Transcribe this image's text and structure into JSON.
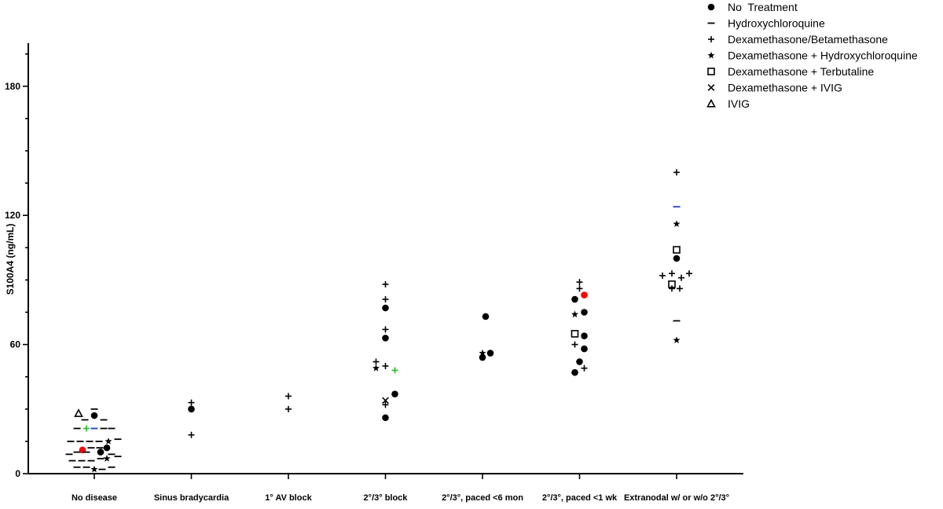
{
  "chart_data": {
    "type": "scatter",
    "title": "",
    "xlabel": "",
    "ylabel": "S100A4 (ng/mL)",
    "ylim": [
      0,
      200
    ],
    "yticks": [
      0,
      60,
      120,
      180
    ],
    "grid": false,
    "legend_position": "top-right",
    "categories": [
      "No disease",
      "Sinus bradycardia",
      "1° AV block",
      "2°/3° block",
      "2°/3°, paced <6 mon",
      "2°/3°, paced <1 wk",
      "Extranodal w/ or w/o 2°/3°"
    ],
    "groups": [
      {
        "key": "none",
        "name": "No  Treatment",
        "marker": "circle"
      },
      {
        "key": "hcq",
        "name": "Hydroxychloroquine",
        "marker": "dash"
      },
      {
        "key": "dex",
        "name": "Dexamethasone/Betamethasone",
        "marker": "plus"
      },
      {
        "key": "dexh",
        "name": "Dexamethasone + Hydroxychloroquine",
        "marker": "star"
      },
      {
        "key": "dext",
        "name": "Dexamethasone + Terbutaline",
        "marker": "square"
      },
      {
        "key": "dexi",
        "name": "Dexamethasone + IVIG",
        "marker": "x"
      },
      {
        "key": "ivig",
        "name": "IVIG",
        "marker": "triangle"
      }
    ],
    "colors": {
      "default": "#000000",
      "red": "#ff0000",
      "green": "#22bb22",
      "blue": "#1a3fd0"
    },
    "points": [
      {
        "cat": 0,
        "offset": -0.2,
        "y": 28,
        "g": "ivig"
      },
      {
        "cat": 0,
        "offset": 0.0,
        "y": 27,
        "g": "none"
      },
      {
        "cat": 0,
        "offset": 0.0,
        "y": 30,
        "g": "hcq"
      },
      {
        "cat": 0,
        "offset": -0.12,
        "y": 25,
        "g": "hcq"
      },
      {
        "cat": 0,
        "offset": 0.12,
        "y": 25,
        "g": "hcq"
      },
      {
        "cat": 0,
        "offset": -0.22,
        "y": 21,
        "g": "hcq"
      },
      {
        "cat": 0,
        "offset": -0.1,
        "y": 21,
        "g": "dex",
        "color": "green"
      },
      {
        "cat": 0,
        "offset": 0.0,
        "y": 21,
        "g": "hcq",
        "color": "blue"
      },
      {
        "cat": 0,
        "offset": 0.12,
        "y": 21,
        "g": "hcq"
      },
      {
        "cat": 0,
        "offset": 0.22,
        "y": 21,
        "g": "hcq"
      },
      {
        "cat": 0,
        "offset": -0.3,
        "y": 15,
        "g": "hcq"
      },
      {
        "cat": 0,
        "offset": -0.18,
        "y": 15,
        "g": "hcq"
      },
      {
        "cat": 0,
        "offset": -0.06,
        "y": 15,
        "g": "hcq"
      },
      {
        "cat": 0,
        "offset": 0.06,
        "y": 15,
        "g": "hcq"
      },
      {
        "cat": 0,
        "offset": 0.18,
        "y": 15,
        "g": "dexh"
      },
      {
        "cat": 0,
        "offset": 0.3,
        "y": 16,
        "g": "hcq"
      },
      {
        "cat": 0,
        "offset": -0.15,
        "y": 11,
        "g": "none",
        "color": "red"
      },
      {
        "cat": 0,
        "offset": -0.04,
        "y": 12,
        "g": "hcq"
      },
      {
        "cat": 0,
        "offset": 0.07,
        "y": 12,
        "g": "hcq"
      },
      {
        "cat": 0,
        "offset": 0.16,
        "y": 12,
        "g": "none"
      },
      {
        "cat": 0,
        "offset": -0.32,
        "y": 9,
        "g": "hcq"
      },
      {
        "cat": 0,
        "offset": -0.22,
        "y": 10,
        "g": "hcq"
      },
      {
        "cat": 0,
        "offset": -0.1,
        "y": 10,
        "g": "hcq"
      },
      {
        "cat": 0,
        "offset": 0.08,
        "y": 10,
        "g": "none"
      },
      {
        "cat": 0,
        "offset": 0.22,
        "y": 9,
        "g": "hcq"
      },
      {
        "cat": 0,
        "offset": 0.3,
        "y": 8,
        "g": "hcq"
      },
      {
        "cat": 0,
        "offset": -0.28,
        "y": 6,
        "g": "hcq"
      },
      {
        "cat": 0,
        "offset": -0.16,
        "y": 6,
        "g": "hcq"
      },
      {
        "cat": 0,
        "offset": -0.04,
        "y": 6,
        "g": "hcq"
      },
      {
        "cat": 0,
        "offset": 0.08,
        "y": 7,
        "g": "hcq"
      },
      {
        "cat": 0,
        "offset": 0.16,
        "y": 7,
        "g": "dexh"
      },
      {
        "cat": 0,
        "offset": -0.22,
        "y": 3,
        "g": "hcq"
      },
      {
        "cat": 0,
        "offset": -0.1,
        "y": 3,
        "g": "hcq"
      },
      {
        "cat": 0,
        "offset": 0.0,
        "y": 2,
        "g": "dexh"
      },
      {
        "cat": 0,
        "offset": 0.1,
        "y": 2,
        "g": "hcq"
      },
      {
        "cat": 0,
        "offset": 0.22,
        "y": 3,
        "g": "hcq"
      },
      {
        "cat": 1,
        "offset": 0.0,
        "y": 33,
        "g": "dex"
      },
      {
        "cat": 1,
        "offset": 0.0,
        "y": 30,
        "g": "none"
      },
      {
        "cat": 1,
        "offset": 0.0,
        "y": 18,
        "g": "dex"
      },
      {
        "cat": 2,
        "offset": 0.0,
        "y": 36,
        "g": "dex"
      },
      {
        "cat": 2,
        "offset": 0.0,
        "y": 30,
        "g": "dex"
      },
      {
        "cat": 3,
        "offset": 0.0,
        "y": 88,
        "g": "dex"
      },
      {
        "cat": 3,
        "offset": 0.0,
        "y": 81,
        "g": "dex"
      },
      {
        "cat": 3,
        "offset": 0.0,
        "y": 77,
        "g": "none"
      },
      {
        "cat": 3,
        "offset": 0.0,
        "y": 67,
        "g": "dex"
      },
      {
        "cat": 3,
        "offset": 0.0,
        "y": 63,
        "g": "none"
      },
      {
        "cat": 3,
        "offset": -0.12,
        "y": 52,
        "g": "dex"
      },
      {
        "cat": 3,
        "offset": -0.12,
        "y": 49,
        "g": "dexh"
      },
      {
        "cat": 3,
        "offset": 0.0,
        "y": 50,
        "g": "dex"
      },
      {
        "cat": 3,
        "offset": 0.12,
        "y": 48,
        "g": "dex",
        "color": "green"
      },
      {
        "cat": 3,
        "offset": 0.12,
        "y": 37,
        "g": "none"
      },
      {
        "cat": 3,
        "offset": 0.0,
        "y": 34,
        "g": "dexi"
      },
      {
        "cat": 3,
        "offset": 0.0,
        "y": 32,
        "g": "dex"
      },
      {
        "cat": 3,
        "offset": 0.0,
        "y": 26,
        "g": "none"
      },
      {
        "cat": 4,
        "offset": 0.04,
        "y": 73,
        "g": "none"
      },
      {
        "cat": 4,
        "offset": 0.0,
        "y": 56,
        "g": "dexh"
      },
      {
        "cat": 4,
        "offset": 0.1,
        "y": 56,
        "g": "none"
      },
      {
        "cat": 4,
        "offset": 0.0,
        "y": 54,
        "g": "none"
      },
      {
        "cat": 5,
        "offset": 0.0,
        "y": 89,
        "g": "dex"
      },
      {
        "cat": 5,
        "offset": 0.0,
        "y": 86,
        "g": "dex"
      },
      {
        "cat": 5,
        "offset": 0.06,
        "y": 83,
        "g": "none",
        "color": "red"
      },
      {
        "cat": 5,
        "offset": -0.06,
        "y": 81,
        "g": "none"
      },
      {
        "cat": 5,
        "offset": -0.06,
        "y": 74,
        "g": "dexh"
      },
      {
        "cat": 5,
        "offset": 0.06,
        "y": 75,
        "g": "none"
      },
      {
        "cat": 5,
        "offset": -0.06,
        "y": 65,
        "g": "dext"
      },
      {
        "cat": 5,
        "offset": 0.06,
        "y": 64,
        "g": "none"
      },
      {
        "cat": 5,
        "offset": -0.06,
        "y": 60,
        "g": "dex"
      },
      {
        "cat": 5,
        "offset": 0.06,
        "y": 58,
        "g": "none"
      },
      {
        "cat": 5,
        "offset": 0.0,
        "y": 52,
        "g": "none"
      },
      {
        "cat": 5,
        "offset": 0.06,
        "y": 49,
        "g": "dex"
      },
      {
        "cat": 5,
        "offset": -0.06,
        "y": 47,
        "g": "none"
      },
      {
        "cat": 6,
        "offset": 0.0,
        "y": 140,
        "g": "dex"
      },
      {
        "cat": 6,
        "offset": 0.0,
        "y": 124,
        "g": "hcq",
        "color": "blue"
      },
      {
        "cat": 6,
        "offset": 0.0,
        "y": 116,
        "g": "dexh"
      },
      {
        "cat": 6,
        "offset": 0.0,
        "y": 104,
        "g": "dext"
      },
      {
        "cat": 6,
        "offset": 0.0,
        "y": 100,
        "g": "none"
      },
      {
        "cat": 6,
        "offset": -0.18,
        "y": 92,
        "g": "dex"
      },
      {
        "cat": 6,
        "offset": -0.06,
        "y": 93,
        "g": "dex"
      },
      {
        "cat": 6,
        "offset": 0.06,
        "y": 91,
        "g": "dex"
      },
      {
        "cat": 6,
        "offset": 0.16,
        "y": 93,
        "g": "dex"
      },
      {
        "cat": 6,
        "offset": -0.06,
        "y": 88,
        "g": "dext"
      },
      {
        "cat": 6,
        "offset": -0.06,
        "y": 86,
        "g": "dex"
      },
      {
        "cat": 6,
        "offset": 0.04,
        "y": 86,
        "g": "dex"
      },
      {
        "cat": 6,
        "offset": 0.0,
        "y": 71,
        "g": "hcq"
      },
      {
        "cat": 6,
        "offset": 0.0,
        "y": 62,
        "g": "dexh"
      }
    ]
  }
}
